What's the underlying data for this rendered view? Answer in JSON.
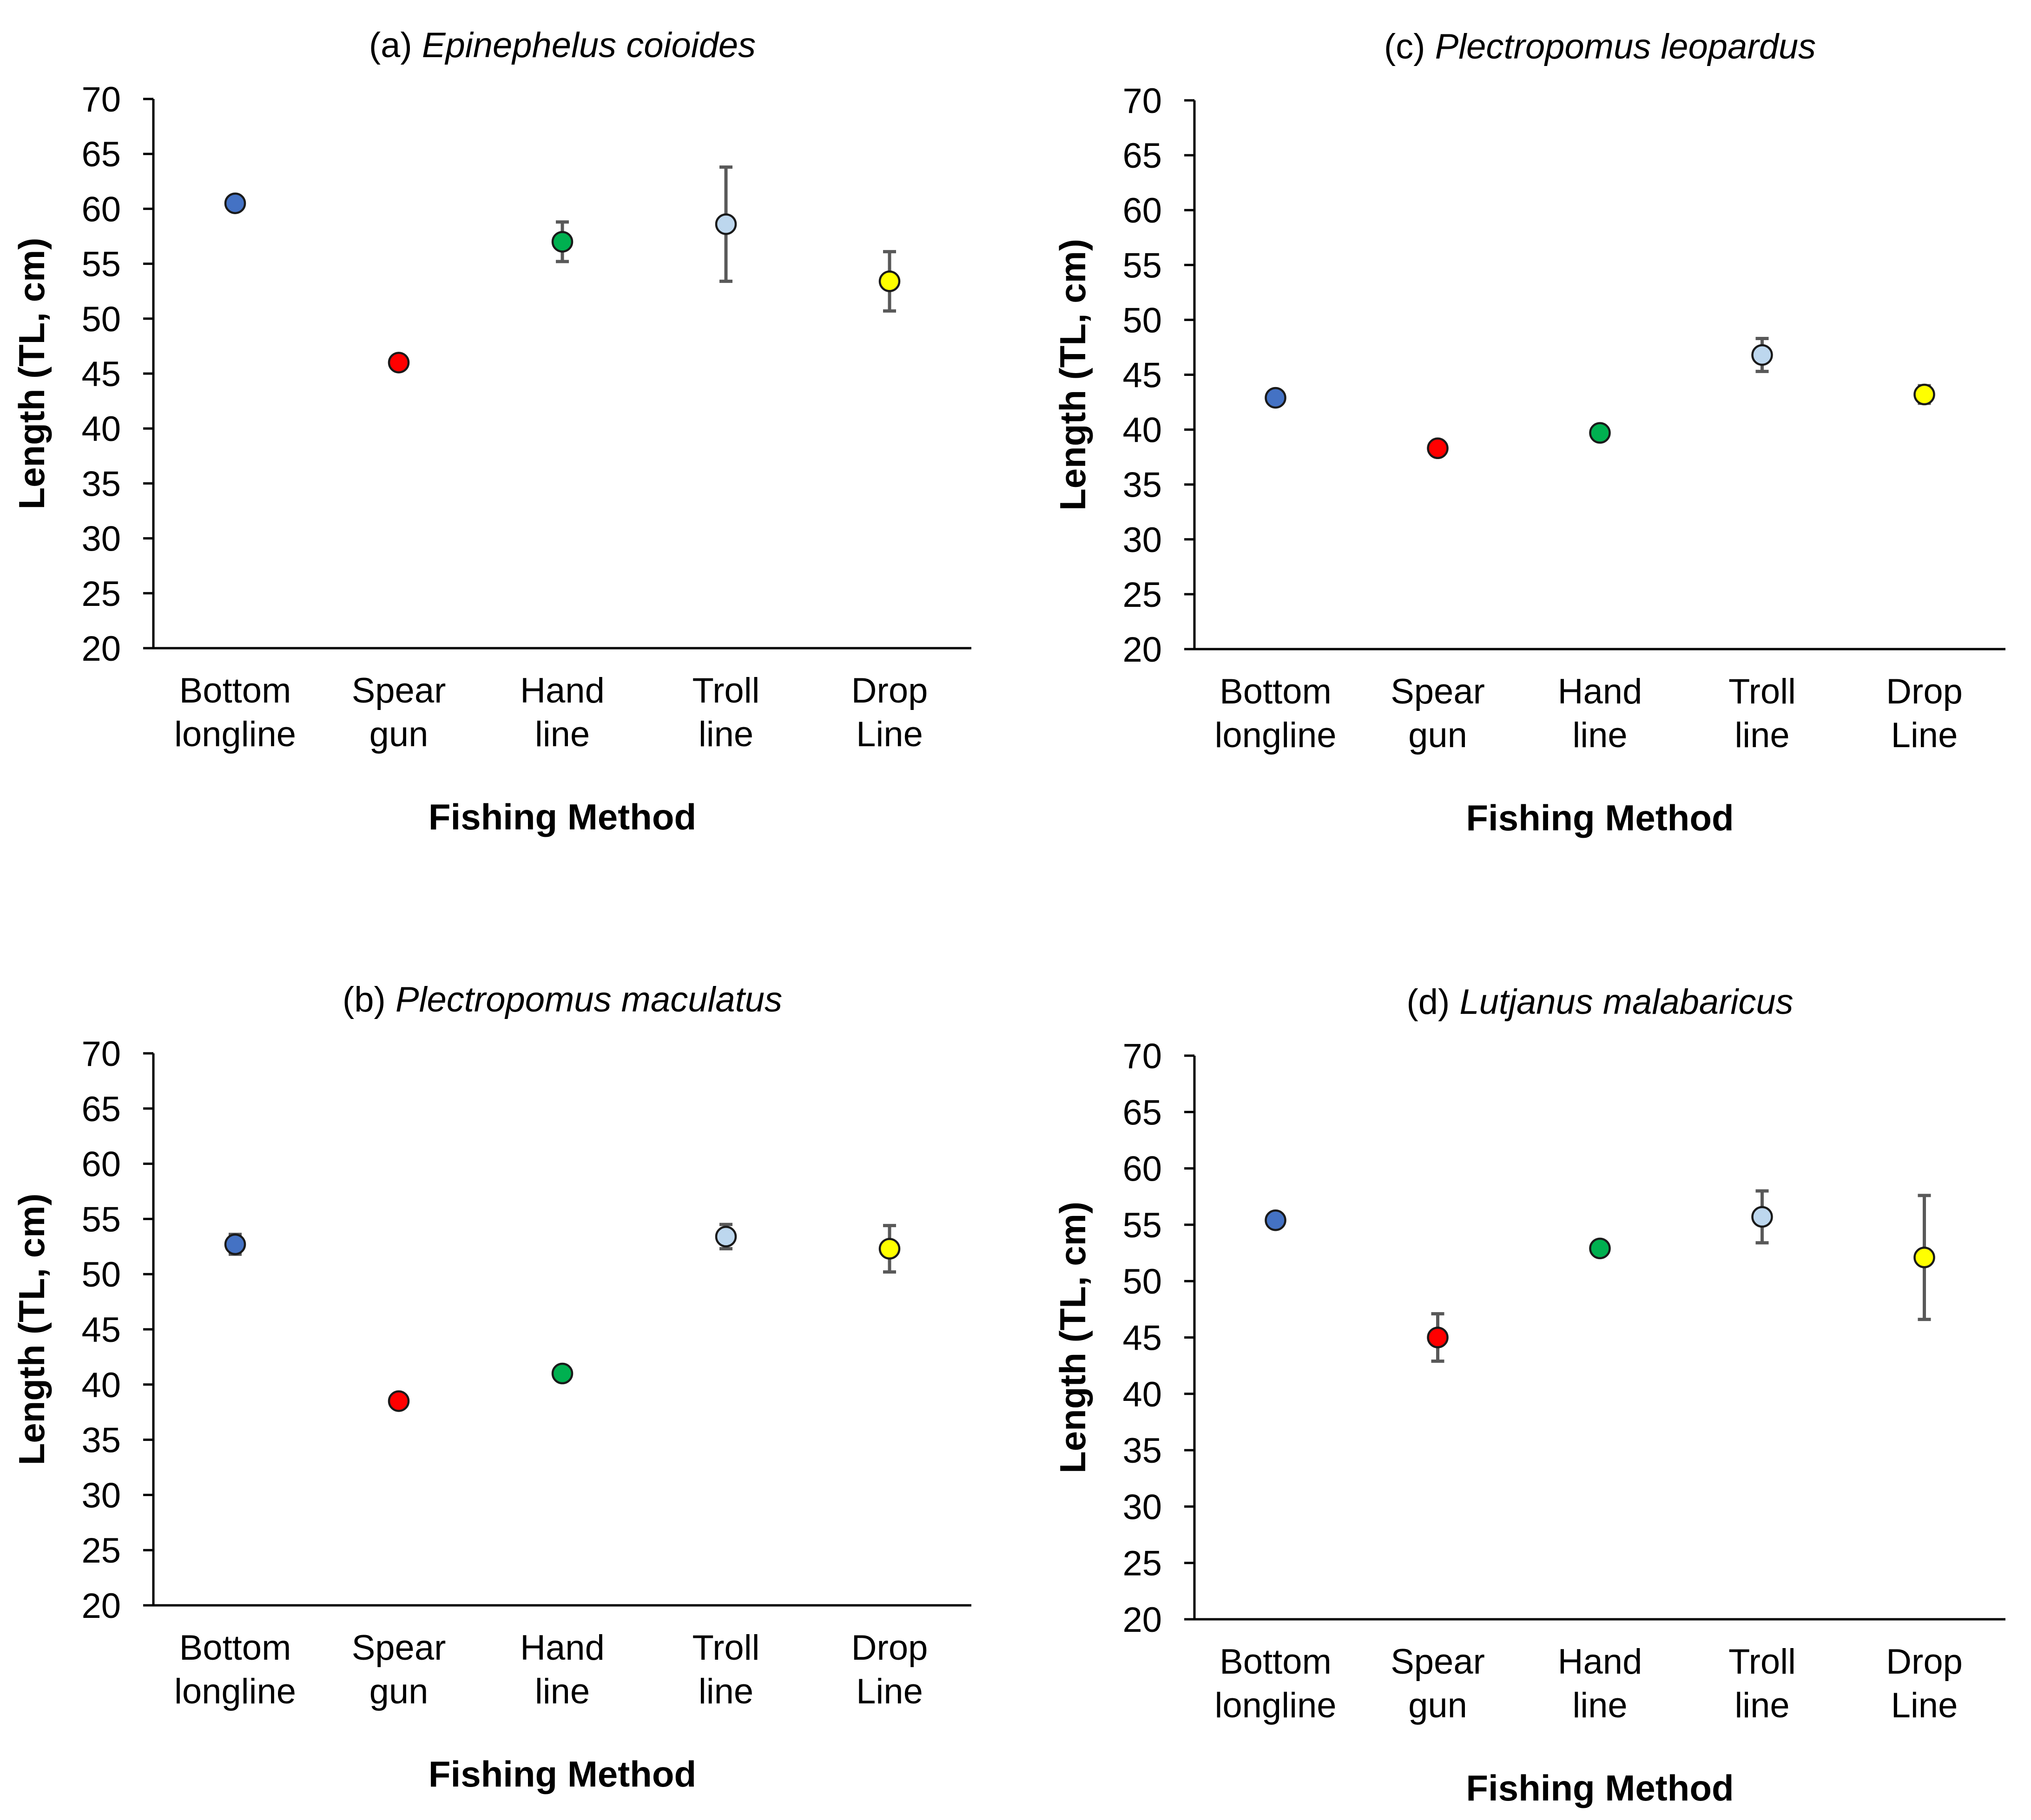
{
  "chart_data": [
    {
      "type": "scatter",
      "panel_label": "(a)",
      "species": "Epinephelus coioides",
      "xlabel": "Fishing Method",
      "ylabel": "Length (TL, cm)",
      "ylim": [
        20,
        70
      ],
      "yticks": [
        20,
        25,
        30,
        35,
        40,
        45,
        50,
        55,
        60,
        65,
        70
      ],
      "categories": [
        [
          "Bottom",
          "longline"
        ],
        [
          "Spear",
          "gun"
        ],
        [
          "Hand",
          "line"
        ],
        [
          "Troll",
          "line"
        ],
        [
          "Drop",
          "Line"
        ]
      ],
      "values": [
        60.5,
        46.0,
        57.0,
        58.6,
        53.4
      ],
      "errors": [
        0.3,
        0.6,
        1.8,
        5.2,
        2.7
      ],
      "colors": [
        "#4472c4",
        "#ff0000",
        "#00b050",
        "#bdd7ee",
        "#ffff00"
      ]
    },
    {
      "type": "scatter",
      "panel_label": "(b)",
      "species": "Plectropomus maculatus",
      "xlabel": "Fishing Method",
      "ylabel": "Length (TL, cm)",
      "ylim": [
        20,
        70
      ],
      "yticks": [
        20,
        25,
        30,
        35,
        40,
        45,
        50,
        55,
        60,
        65,
        70
      ],
      "categories": [
        [
          "Bottom",
          "longline"
        ],
        [
          "Spear",
          "gun"
        ],
        [
          "Hand",
          "line"
        ],
        [
          "Troll",
          "line"
        ],
        [
          "Drop",
          "Line"
        ]
      ],
      "values": [
        52.7,
        38.5,
        41.0,
        53.4,
        52.3
      ],
      "errors": [
        0.9,
        0.3,
        0.6,
        1.1,
        2.1
      ],
      "colors": [
        "#4472c4",
        "#ff0000",
        "#00b050",
        "#bdd7ee",
        "#ffff00"
      ]
    },
    {
      "type": "scatter",
      "panel_label": "(c)",
      "species": "Plectropomus leopardus",
      "xlabel": "Fishing Method",
      "ylabel": "Length (TL, cm)",
      "ylim": [
        20,
        70
      ],
      "yticks": [
        20,
        25,
        30,
        35,
        40,
        45,
        50,
        55,
        60,
        65,
        70
      ],
      "categories": [
        [
          "Bottom",
          "longline"
        ],
        [
          "Spear",
          "gun"
        ],
        [
          "Hand",
          "line"
        ],
        [
          "Troll",
          "line"
        ],
        [
          "Drop",
          "Line"
        ]
      ],
      "values": [
        42.9,
        38.3,
        39.7,
        46.8,
        43.2
      ],
      "errors": [
        0.4,
        0.3,
        0.3,
        1.5,
        0.8
      ],
      "colors": [
        "#4472c4",
        "#ff0000",
        "#00b050",
        "#bdd7ee",
        "#ffff00"
      ]
    },
    {
      "type": "scatter",
      "panel_label": "(d)",
      "species": "Lutjanus malabaricus",
      "xlabel": "Fishing Method",
      "ylabel": "Length (TL, cm)",
      "ylim": [
        20,
        70
      ],
      "yticks": [
        20,
        25,
        30,
        35,
        40,
        45,
        50,
        55,
        60,
        65,
        70
      ],
      "categories": [
        [
          "Bottom",
          "longline"
        ],
        [
          "Spear",
          "gun"
        ],
        [
          "Hand",
          "line"
        ],
        [
          "Troll",
          "line"
        ],
        [
          "Drop",
          "Line"
        ]
      ],
      "values": [
        55.4,
        45.0,
        52.9,
        55.7,
        52.1
      ],
      "errors": [
        0.3,
        2.1,
        0.3,
        2.3,
        5.5
      ],
      "colors": [
        "#4472c4",
        "#ff0000",
        "#00b050",
        "#bdd7ee",
        "#ffff00"
      ]
    }
  ]
}
